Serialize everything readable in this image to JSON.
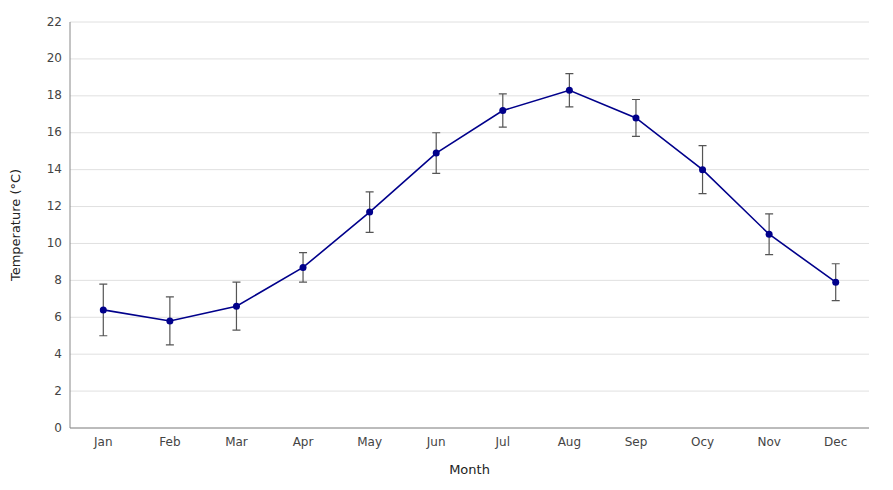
{
  "chart_data": {
    "type": "line",
    "categories": [
      "Jan",
      "Feb",
      "Mar",
      "Apr",
      "May",
      "Jun",
      "Jul",
      "Aug",
      "Sep",
      "Ocy",
      "Nov",
      "Dec"
    ],
    "values": [
      6.4,
      5.8,
      6.6,
      8.7,
      11.7,
      14.9,
      17.2,
      18.3,
      16.8,
      14.0,
      10.5,
      7.9
    ],
    "errors": [
      1.4,
      1.3,
      1.3,
      0.8,
      1.1,
      1.1,
      0.9,
      0.9,
      1.0,
      1.3,
      1.1,
      1.0
    ],
    "color": "#00008B",
    "marker": "circle",
    "line_style": "solid",
    "xlabel": "Month",
    "ylabel": "Temperature (°C)",
    "ylim": [
      0,
      22
    ],
    "yticks": [
      0,
      2,
      4,
      6,
      8,
      10,
      12,
      14,
      16,
      18,
      20,
      22
    ],
    "grid": true
  }
}
